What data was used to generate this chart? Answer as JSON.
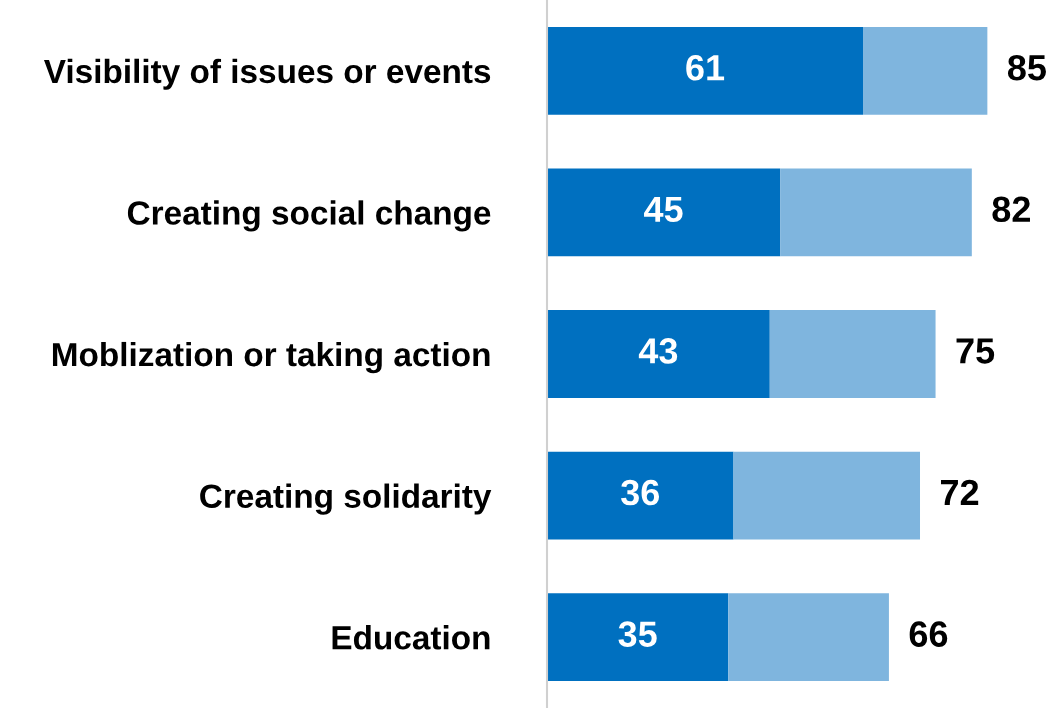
{
  "chart_data": {
    "type": "bar",
    "orientation": "horizontal",
    "stacked": true,
    "categories": [
      "Visibility of issues or events",
      "Creating social change",
      "Moblization or taking action",
      "Creating solidarity",
      "Education"
    ],
    "series": [
      {
        "color": "#0070c0",
        "values": [
          61,
          45,
          43,
          36,
          35
        ],
        "value_labels": [
          "61",
          "45",
          "43",
          "36",
          "35"
        ]
      },
      {
        "color": "#7fb5de",
        "values": [
          24,
          37,
          32,
          36,
          31
        ]
      }
    ],
    "totals": [
      "85",
      "82",
      "75",
      "72",
      "66"
    ],
    "tick_labels": "y",
    "grid": false,
    "legend": false
  }
}
